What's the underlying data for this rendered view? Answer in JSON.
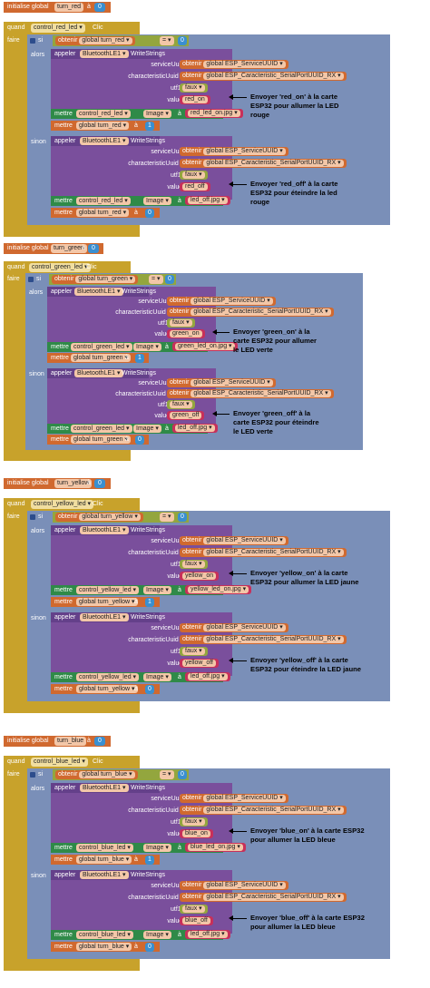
{
  "common": {
    "initialise_label": "initialise global",
    "to_label": "à",
    "when_label": "quand",
    "do_label": "faire",
    "clic_label": "Clic",
    "if_label": "si",
    "then_label": "alors",
    "else_label": "sinon",
    "get_label": "obtenir",
    "eq_label": "=",
    "call_label": "appeler",
    "ble_component": "BluetoothLE1",
    "method": "WriteStrings",
    "service_param": "serviceUuid",
    "char_param": "characteristicUuid",
    "utf16_param": "utf16",
    "values_param": "values",
    "service_var": "global ESP_ServiceUUID",
    "char_var_red": "global ESP_Caracteristic_SerialPortUUID_RX",
    "char_var": "global ESP_Caracteristic_SerialPortUUID_RX",
    "char_var_yellow": "global ESP_Caracteristic_SerialPortUUID_RX",
    "false_value": "faux",
    "set_label": "mettre",
    "image_prop": "Image",
    "zero": "0",
    "one": "1"
  },
  "blocks": [
    {
      "var": "turn_red",
      "button": "control_red_led",
      "get_var": "global turn_red",
      "on_value": "red_on",
      "off_value": "red_off",
      "on_image": "red_led_on.jpg",
      "off_image": "led_off.jpg",
      "comment_on": [
        "Envoyer 'red_on' à la carte",
        "ESP32 pour allumer la LED",
        "rouge"
      ],
      "comment_off": [
        "Envoyer 'red_off' à la carte",
        "ESP32 pour éteindre la led",
        "rouge"
      ]
    },
    {
      "var": "turn_green",
      "button": "control_green_led",
      "get_var": "global turn_green",
      "on_value": "green_on",
      "off_value": "green_off",
      "on_image": "green_led_on.jpg",
      "off_image": "led_off.jpg",
      "comment_on": [
        "Envoyer 'green_on' à la",
        "carte ESP32 pour allumer",
        "le LED verte"
      ],
      "comment_off": [
        "Envoyer 'green_off' à la",
        "carte ESP32 pour éteindre",
        "le LED verte"
      ]
    },
    {
      "var": "turn_yellow",
      "button": "control_yellow_led",
      "get_var": "global turn_yellow",
      "on_value": "yellow_on",
      "off_value": "yellow_off",
      "on_image": "yellow_led_on.jpg",
      "off_image": "led_off.jpg",
      "comment_on": [
        "Envoyer 'yellow_on' à la carte",
        "ESP32 pour allumer la LED jaune"
      ],
      "comment_off": [
        "Envoyer 'yellow_off' à la carte",
        "ESP32 pour éteindre la LED jaune"
      ]
    },
    {
      "var": "turn_blue",
      "button": "control_blue_led",
      "get_var": "global turn_blue",
      "on_value": "blue_on",
      "off_value": "blue_off",
      "on_image": "blue_led_on.jpg",
      "off_image": "led_off.jpg",
      "comment_on": [
        "Envoyer 'blue_on' à la carte ESP32",
        "pour allumer la LED bleue"
      ],
      "comment_off": [
        "Envoyer 'blue_off' à la carte ESP32",
        "pour allumer la LED bleue"
      ]
    }
  ]
}
